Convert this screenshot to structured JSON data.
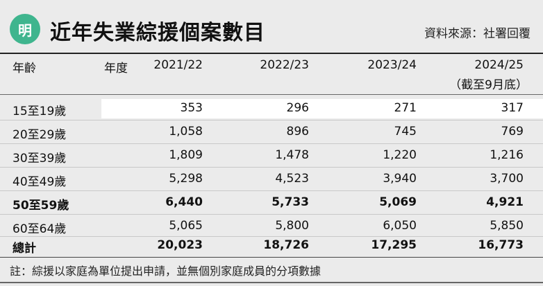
{
  "header": {
    "logo_text": "明",
    "title": "近年失業綜援個案數目",
    "source": "資料來源：社署回覆"
  },
  "table": {
    "columns": {
      "age": "年齡",
      "year_label": "年度",
      "y1": "2021/22",
      "y2": "2022/23",
      "y3": "2023/24",
      "y4": "2024/25",
      "y4_note": "（截至9月底）"
    },
    "rows": [
      {
        "age": "15至19歲",
        "v1": "353",
        "v2": "296",
        "v3": "271",
        "v4": "317"
      },
      {
        "age": "20至29歲",
        "v1": "1,058",
        "v2": "896",
        "v3": "745",
        "v4": "769"
      },
      {
        "age": "30至39歲",
        "v1": "1,809",
        "v2": "1,478",
        "v3": "1,220",
        "v4": "1,216"
      },
      {
        "age": "40至49歲",
        "v1": "5,298",
        "v2": "4,523",
        "v3": "3,940",
        "v4": "3,700"
      },
      {
        "age": "50至59歲",
        "v1": "6,440",
        "v2": "5,733",
        "v3": "5,069",
        "v4": "4,921"
      },
      {
        "age": "60至64歲",
        "v1": "5,065",
        "v2": "5,800",
        "v3": "6,050",
        "v4": "5,850"
      }
    ],
    "total": {
      "label": "總計",
      "v1": "20,023",
      "v2": "18,726",
      "v3": "17,295",
      "v4": "16,773"
    }
  },
  "note": "註：綜援以家庭為單位提出申請，並無個別家庭成員的分項數據",
  "colors": {
    "logo": "#3fb58e",
    "background": "#ebebeb",
    "highlight_row": "#ffffff"
  }
}
